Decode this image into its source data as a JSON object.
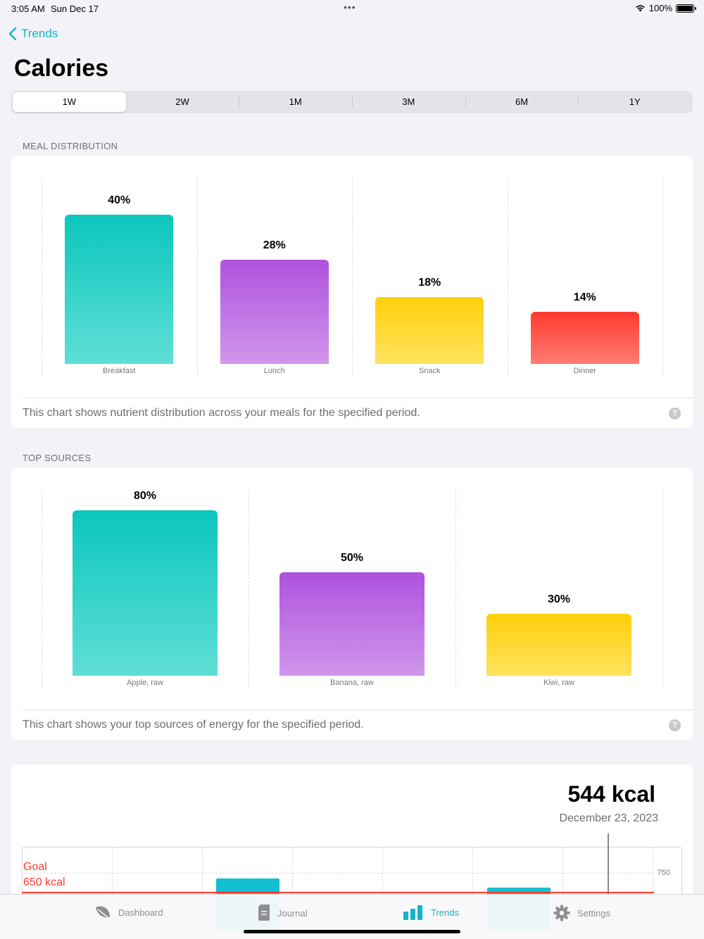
{
  "status": {
    "time": "3:05 AM",
    "date": "Sun Dec 17",
    "battery": "100%"
  },
  "nav": {
    "back_label": "Trends"
  },
  "page": {
    "title": "Calories"
  },
  "periods": [
    {
      "label": "1W",
      "selected": true
    },
    {
      "label": "2W",
      "selected": false
    },
    {
      "label": "1M",
      "selected": false
    },
    {
      "label": "3M",
      "selected": false
    },
    {
      "label": "6M",
      "selected": false
    },
    {
      "label": "1Y",
      "selected": false
    }
  ],
  "meal_distribution": {
    "header": "MEAL DISTRIBUTION",
    "note": "This chart shows nutrient distribution across your meals for the specified period."
  },
  "top_sources": {
    "header": "TOP SOURCES",
    "note": "This chart shows your top sources of energy for the specified period."
  },
  "daily": {
    "value": "544 kcal",
    "date": "December 23, 2023",
    "goal_label": "Goal",
    "goal_value": "650 kcal",
    "axis_tick": "750"
  },
  "tabs": [
    {
      "label": "Dashboard"
    },
    {
      "label": "Journal"
    },
    {
      "label": "Trends"
    },
    {
      "label": "Settings"
    }
  ],
  "colors": {
    "accent": "#13b5c7",
    "teal": "#0bc6bd",
    "purple": "#ae52dd",
    "yellow": "#ffd00a",
    "red": "#ff3b30"
  },
  "chart_data": [
    {
      "type": "bar",
      "categories": [
        "Breakfast",
        "Lunch",
        "Snack",
        "Dinner"
      ],
      "values": [
        40,
        28,
        18,
        14
      ],
      "value_labels": [
        "40%",
        "28%",
        "18%",
        "14%"
      ]
    },
    {
      "type": "bar",
      "categories": [
        "Apple, raw",
        "Banana, raw",
        "Kiwi, raw"
      ],
      "values": [
        80,
        50,
        30
      ],
      "value_labels": [
        "80%",
        "50%",
        "30%"
      ]
    }
  ]
}
